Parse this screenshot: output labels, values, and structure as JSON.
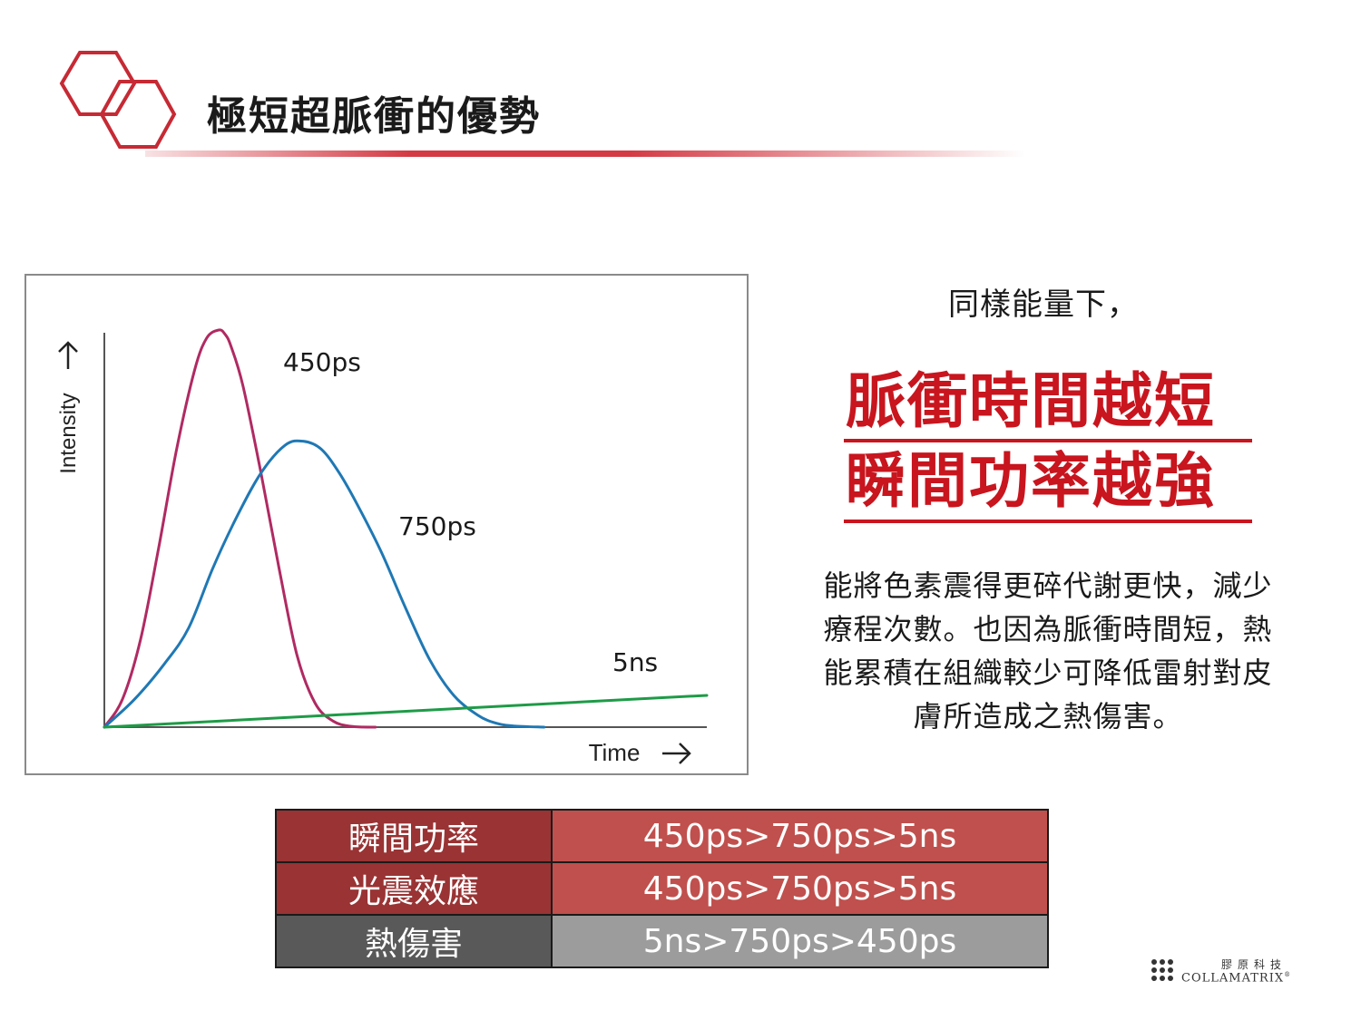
{
  "slide": {
    "title": "極短超脈衝的優勢"
  },
  "right": {
    "subhead": "同樣能量下，",
    "emphasis_line1": "脈衝時間越短",
    "emphasis_line2": "瞬間功率越強",
    "body": "能將色素震得更碎代謝更快，減少療程次數。也因為脈衝時間短，熱能累積在組織較少可降低雷射對皮膚所造成之熱傷害。",
    "body_lines": [
      "能將色素震得更碎代謝更快，減少",
      "療程次數。也因為脈衝時間短，熱",
      "能累積在組織較少可降低雷射對皮",
      "膚所造成之熱傷害。"
    ]
  },
  "table": {
    "rows": [
      {
        "label": "瞬間功率",
        "value": "450ps>750ps>5ns",
        "style": "red"
      },
      {
        "label": "光震效應",
        "value": "450ps>750ps>5ns",
        "style": "red"
      },
      {
        "label": "熱傷害",
        "value": "5ns>750ps>450ps",
        "style": "grey"
      }
    ]
  },
  "brand": {
    "chinese": "膠原科技",
    "english": "COLLAMATRIX",
    "mark": "®"
  },
  "colors": {
    "accent_red": "#c8151e",
    "table_red_label": "#993334",
    "table_red_value": "#c0504d",
    "table_grey_label": "#595959",
    "table_grey_value": "#9c9c9c"
  },
  "chart_data": {
    "type": "line",
    "title": "",
    "xlabel": "Time",
    "ylabel": "Intensity",
    "xlim": [
      0,
      1
    ],
    "ylim": [
      0,
      1
    ],
    "ticks": "none",
    "grid": false,
    "series": [
      {
        "name": "450ps",
        "color": "#b02a62",
        "x": [
          0,
          0.03,
          0.06,
          0.09,
          0.12,
          0.15,
          0.17,
          0.19,
          0.2,
          0.21,
          0.23,
          0.26,
          0.29,
          0.32,
          0.35,
          0.38,
          0.41,
          0.45
        ],
        "y": [
          0,
          0.07,
          0.22,
          0.45,
          0.7,
          0.9,
          0.98,
          1.0,
          0.99,
          0.96,
          0.86,
          0.64,
          0.4,
          0.18,
          0.06,
          0.015,
          0.002,
          0
        ]
      },
      {
        "name": "750ps",
        "color": "#1f78b4",
        "x": [
          0,
          0.05,
          0.1,
          0.14,
          0.18,
          0.22,
          0.26,
          0.3,
          0.33,
          0.36,
          0.39,
          0.42,
          0.46,
          0.5,
          0.54,
          0.58,
          0.62,
          0.65,
          0.68,
          0.73
        ],
        "y": [
          0,
          0.07,
          0.16,
          0.25,
          0.4,
          0.53,
          0.64,
          0.71,
          0.72,
          0.7,
          0.64,
          0.56,
          0.44,
          0.3,
          0.17,
          0.08,
          0.03,
          0.01,
          0.003,
          0
        ]
      },
      {
        "name": "5ns",
        "color": "#1e9b47",
        "x": [
          0,
          1.0
        ],
        "y": [
          0,
          0.08
        ]
      }
    ],
    "labels": [
      {
        "text": "450ps",
        "series": "450ps"
      },
      {
        "text": "750ps",
        "series": "750ps"
      },
      {
        "text": "5ns",
        "series": "5ns"
      }
    ]
  }
}
